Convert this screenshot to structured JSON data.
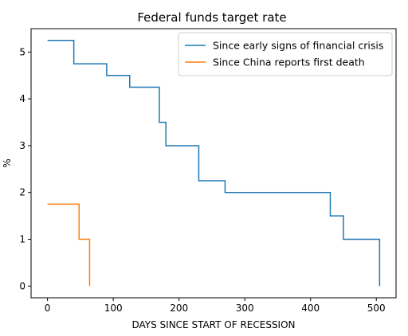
{
  "chart_data": {
    "type": "line",
    "step": true,
    "title": "Federal funds target rate",
    "xlabel": "DAYS SINCE START OF RECESSION",
    "ylabel": "%",
    "xlim": [
      -25,
      530
    ],
    "ylim": [
      -0.25,
      5.5
    ],
    "xticks": [
      0,
      100,
      200,
      300,
      400,
      500
    ],
    "yticks": [
      0,
      1,
      2,
      3,
      4,
      5
    ],
    "grid": false,
    "legend_position": "top-right",
    "series": [
      {
        "name": "Since early signs of financial crisis",
        "color": "#1f77b4",
        "x": [
          0,
          40,
          40,
          90,
          90,
          125,
          125,
          170,
          170,
          180,
          180,
          230,
          230,
          270,
          270,
          430,
          430,
          450,
          450,
          505,
          505
        ],
        "y": [
          5.25,
          5.25,
          4.75,
          4.75,
          4.5,
          4.5,
          4.25,
          4.25,
          3.5,
          3.5,
          3.0,
          3.0,
          2.25,
          2.25,
          2.0,
          2.0,
          1.5,
          1.5,
          1.0,
          1.0,
          0.0
        ]
      },
      {
        "name": "Since China reports first death",
        "color": "#ff7f0e",
        "x": [
          0,
          48,
          48,
          64,
          64
        ],
        "y": [
          1.75,
          1.75,
          1.0,
          1.0,
          0.0
        ]
      }
    ]
  }
}
